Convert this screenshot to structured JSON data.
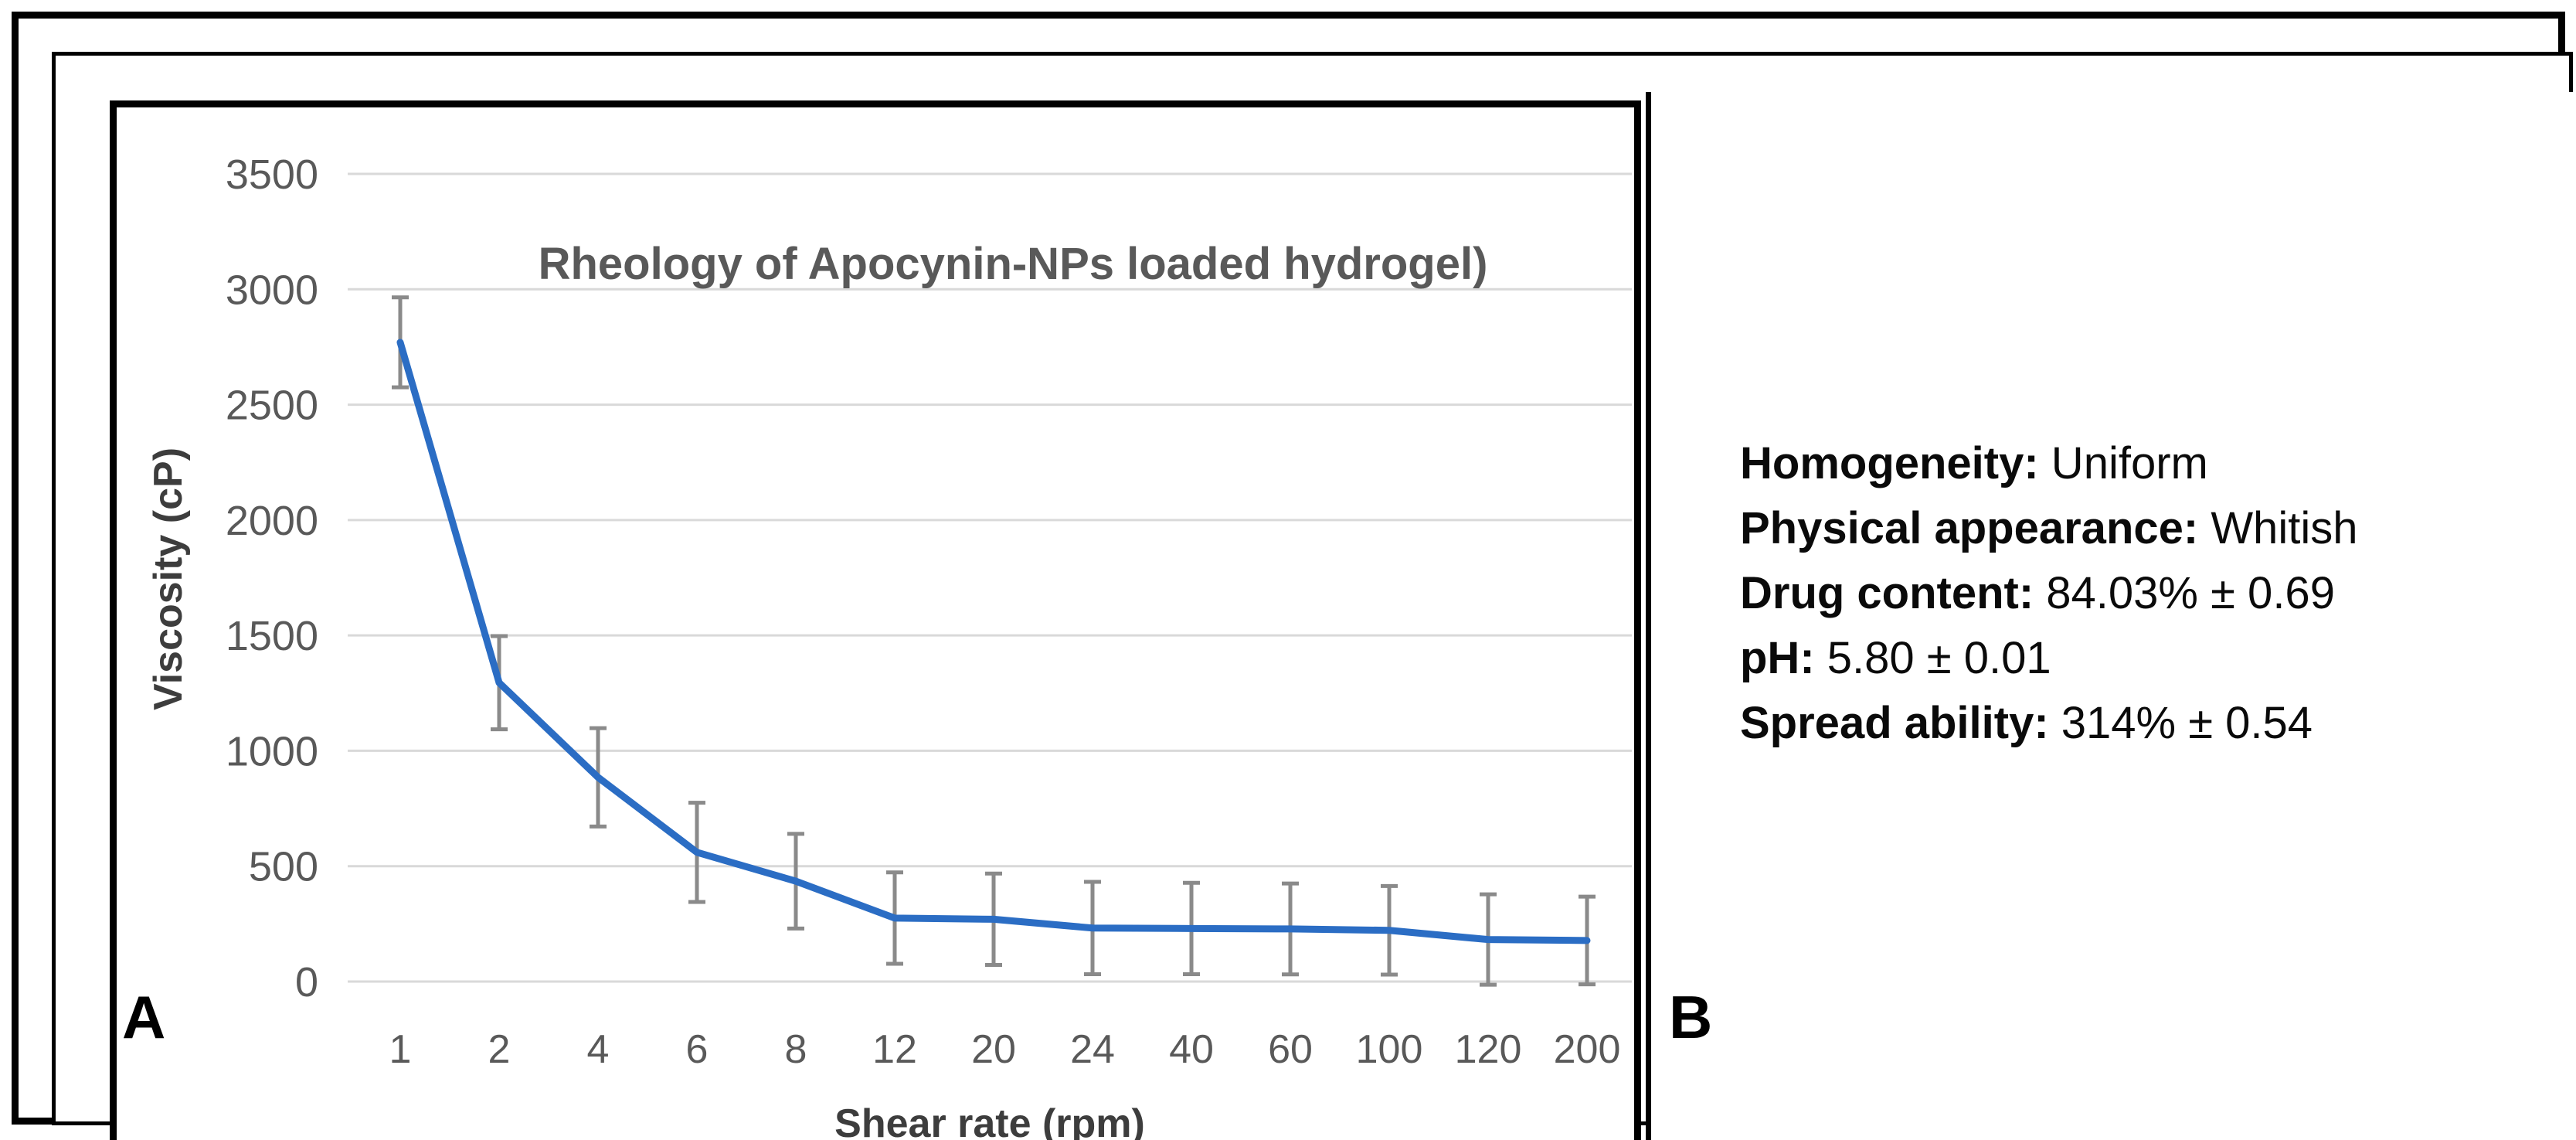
{
  "panels": {
    "a": {
      "label": "A"
    },
    "b": {
      "label": "B",
      "properties": [
        {
          "label": "Homogeneity:",
          "value": "Uniform"
        },
        {
          "label": "Physical appearance:",
          "value": "Whitish"
        },
        {
          "label": "Drug content:",
          "value": "84.03% ± 0.69"
        },
        {
          "label": "pH:",
          "value": "5.80 ± 0.01"
        },
        {
          "label": "Spread ability:",
          "value": "314% ± 0.54"
        }
      ]
    }
  },
  "chart_data": {
    "type": "line",
    "title": "Rheology of Apocynin-NPs loaded hydrogel)",
    "xlabel": "Shear rate (rpm)",
    "ylabel": "Viscosity (cP)",
    "categories": [
      "1",
      "2",
      "4",
      "6",
      "8",
      "12",
      "20",
      "24",
      "40",
      "60",
      "100",
      "120",
      "200"
    ],
    "series": [
      {
        "name": "Viscosity",
        "values": [
          2770,
          1295,
          885,
          560,
          435,
          275,
          270,
          232,
          230,
          228,
          222,
          182,
          178
        ],
        "error_bars": [
          195,
          202,
          213,
          215,
          205,
          198,
          198,
          200,
          198,
          197,
          192,
          196,
          190
        ]
      }
    ],
    "ylim": [
      0,
      3500
    ],
    "yticks": [
      0,
      500,
      1000,
      1500,
      2000,
      2500,
      3000,
      3500
    ],
    "grid": true,
    "legend": false,
    "colors": {
      "line": "#2B6DC4",
      "error_bar": "#8A8A8A",
      "gridline": "#D9D9D9",
      "tick_text": "#595959",
      "title_text": "#595959",
      "axis_title_text": "#3D3D3D"
    }
  }
}
